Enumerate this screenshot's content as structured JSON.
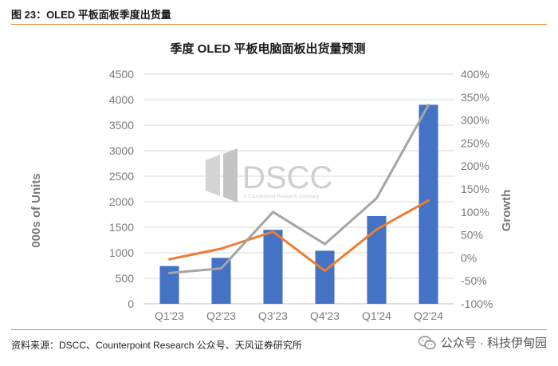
{
  "figure": {
    "header": "图 23：OLED 平板面板季度出货量",
    "source": "资料来源：DSCC、Counterpoint Research 公众号、天风证券研究所",
    "watermark": "公众号 · 科技伊甸园"
  },
  "logo": {
    "text": "DSCC",
    "sub": "A Counterpoint Research Company"
  },
  "chart_data": {
    "type": "bar",
    "title": "季度 OLED 平板电脑面板出货量预测",
    "categories": [
      "Q1'23",
      "Q2'23",
      "Q3'23",
      "Q4'23",
      "Q1'24",
      "Q2'24"
    ],
    "ylabel": "000s of Units",
    "y2label": "Growth",
    "ylim": [
      0,
      4500
    ],
    "yticks": [
      "4500",
      "4000",
      "3500",
      "3000",
      "2500",
      "2000",
      "1500",
      "1000",
      "500",
      "0"
    ],
    "y2lim": [
      -100,
      400
    ],
    "y2ticks": [
      "400%",
      "350%",
      "300%",
      "250%",
      "200%",
      "150%",
      "100%",
      "50%",
      "0%",
      "-50%",
      "-100%"
    ],
    "grid": true,
    "bars": {
      "values": [
        740,
        900,
        1450,
        1040,
        1720,
        3900
      ],
      "color": "#4472c4"
    },
    "lines": [
      {
        "values": [
          -3,
          20,
          57,
          -28,
          62,
          125
        ],
        "color": "#ed7d31",
        "axis": "right"
      },
      {
        "values": [
          -33,
          -23,
          100,
          30,
          130,
          333
        ],
        "color": "#a5a5a5",
        "axis": "right"
      }
    ]
  }
}
